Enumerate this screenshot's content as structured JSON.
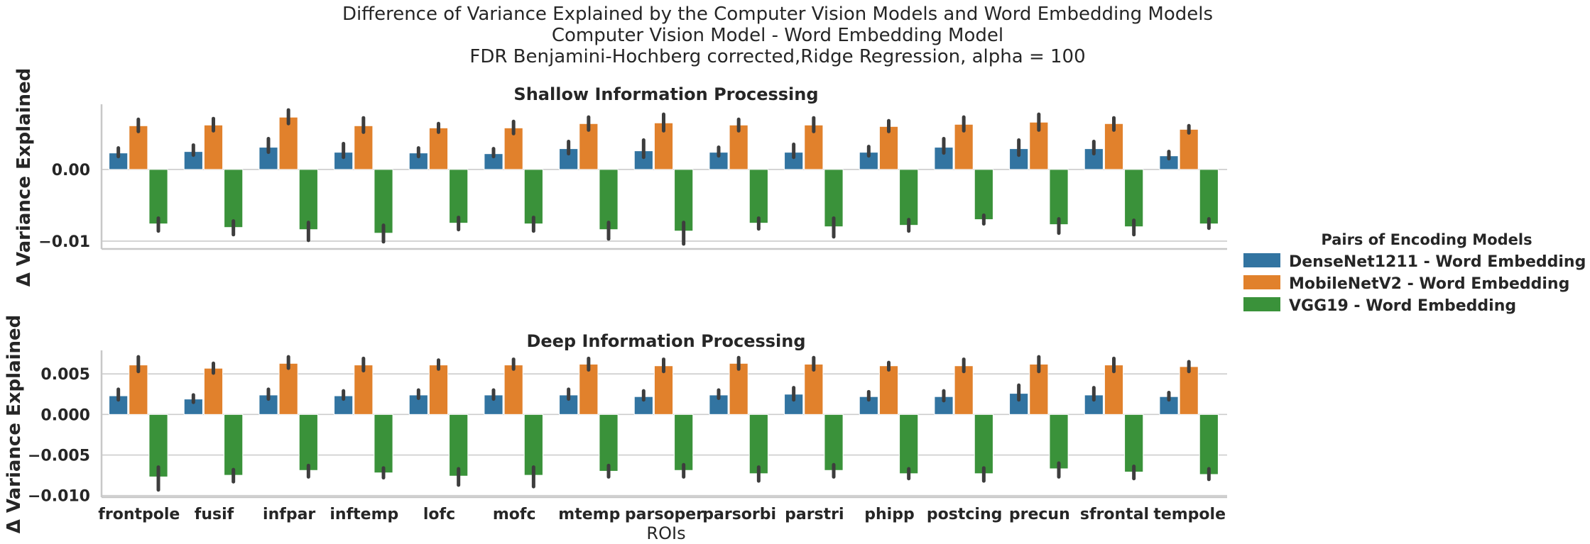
{
  "chart_data": {
    "type": "bar",
    "title": "Difference of Variance Explained by the Computer Vision Models and Word Embedding Models",
    "subtitle": [
      "Computer Vision Model - Word Embedding Model",
      "FDR Benjamini-Hochberg corrected,Ridge Regression, alpha = 100"
    ],
    "xlabel": "ROIs",
    "categories": [
      "frontpole",
      "fusif",
      "infpar",
      "inftemp",
      "lofc",
      "mofc",
      "mtemp",
      "parsoper",
      "parsorbi",
      "parstri",
      "phipp",
      "postcing",
      "precun",
      "sfrontal",
      "tempole"
    ],
    "legend": {
      "title": "Pairs of Encoding Models",
      "placement": "right",
      "series": [
        {
          "name": "DenseNet1211 - Word Embedding",
          "color": "#3274a1"
        },
        {
          "name": "MobileNetV2 - Word Embedding",
          "color": "#e1812c"
        },
        {
          "name": "VGG19 - Word Embedding",
          "color": "#3a923a"
        }
      ]
    },
    "panels": [
      {
        "title": "Shallow Information Processing",
        "ylabel": "Δ Variance Explained",
        "ylim": [
          -0.0111,
          0.0091
        ],
        "yticks": [
          0.0,
          -0.01
        ],
        "ytick_labels": [
          "0.00",
          "−0.01"
        ],
        "grid": true,
        "series": [
          {
            "name": "DenseNet1211 - Word Embedding",
            "values": [
              0.0023,
              0.0025,
              0.0031,
              0.0024,
              0.0023,
              0.0022,
              0.0029,
              0.0026,
              0.0024,
              0.0024,
              0.0024,
              0.0031,
              0.0029,
              0.0029,
              0.0019
            ],
            "err_low": [
              0.0018,
              0.002,
              0.0024,
              0.0017,
              0.0018,
              0.0018,
              0.0022,
              0.0017,
              0.0019,
              0.0017,
              0.0019,
              0.0023,
              0.002,
              0.0022,
              0.0015
            ],
            "err_high": [
              0.003,
              0.0034,
              0.0043,
              0.0036,
              0.003,
              0.0029,
              0.0039,
              0.0041,
              0.0031,
              0.0035,
              0.0032,
              0.0043,
              0.0041,
              0.0039,
              0.0025
            ]
          },
          {
            "name": "MobileNetV2 - Word Embedding",
            "values": [
              0.0061,
              0.0062,
              0.0073,
              0.0061,
              0.0058,
              0.0058,
              0.0064,
              0.0065,
              0.0062,
              0.0062,
              0.006,
              0.0063,
              0.0066,
              0.0064,
              0.0056
            ],
            "err_low": [
              0.0053,
              0.0054,
              0.0064,
              0.0052,
              0.0052,
              0.005,
              0.0055,
              0.0054,
              0.0054,
              0.0053,
              0.0053,
              0.0054,
              0.0055,
              0.0055,
              0.0051
            ],
            "err_high": [
              0.007,
              0.0071,
              0.0083,
              0.0072,
              0.0064,
              0.0067,
              0.0073,
              0.0077,
              0.007,
              0.0072,
              0.0068,
              0.0073,
              0.0077,
              0.0072,
              0.0061
            ]
          },
          {
            "name": "VGG19 - Word Embedding",
            "values": [
              -0.0076,
              -0.0081,
              -0.0084,
              -0.0089,
              -0.0075,
              -0.0076,
              -0.0084,
              -0.0086,
              -0.0075,
              -0.008,
              -0.0078,
              -0.007,
              -0.0077,
              -0.008,
              -0.0076
            ],
            "err_low": [
              -0.0086,
              -0.0091,
              -0.0099,
              -0.0101,
              -0.0084,
              -0.0086,
              -0.0097,
              -0.0104,
              -0.0083,
              -0.0094,
              -0.0086,
              -0.0076,
              -0.0089,
              -0.0091,
              -0.0082
            ],
            "err_high": [
              -0.0068,
              -0.0072,
              -0.0074,
              -0.0078,
              -0.0067,
              -0.0067,
              -0.0074,
              -0.0074,
              -0.0068,
              -0.0068,
              -0.007,
              -0.0064,
              -0.0069,
              -0.0071,
              -0.0069
            ]
          }
        ]
      },
      {
        "title": "Deep Information Processing",
        "ylabel": "Δ Variance Explained",
        "ylim": [
          -0.0102,
          0.0079
        ],
        "yticks": [
          0.005,
          0.0,
          -0.005,
          -0.01
        ],
        "ytick_labels": [
          "0.005",
          "0.000",
          "−0.005",
          "−0.010"
        ],
        "grid": true,
        "series": [
          {
            "name": "DenseNet1211 - Word Embedding",
            "values": [
              0.0023,
              0.0019,
              0.0024,
              0.0023,
              0.0024,
              0.0024,
              0.0024,
              0.0022,
              0.0024,
              0.0025,
              0.0022,
              0.0022,
              0.0026,
              0.0024,
              0.0022
            ],
            "err_low": [
              0.0018,
              0.0015,
              0.0019,
              0.0019,
              0.002,
              0.0019,
              0.0019,
              0.0018,
              0.002,
              0.0018,
              0.0018,
              0.0017,
              0.0018,
              0.0018,
              0.0018
            ],
            "err_high": [
              0.0031,
              0.0024,
              0.0031,
              0.0029,
              0.003,
              0.003,
              0.0031,
              0.0029,
              0.003,
              0.0033,
              0.0028,
              0.0029,
              0.0036,
              0.0033,
              0.0027
            ]
          },
          {
            "name": "MobileNetV2 - Word Embedding",
            "values": [
              0.0061,
              0.0057,
              0.0063,
              0.0061,
              0.0061,
              0.0061,
              0.0062,
              0.006,
              0.0063,
              0.0062,
              0.006,
              0.006,
              0.0062,
              0.0061,
              0.0059
            ],
            "err_low": [
              0.0053,
              0.0051,
              0.0057,
              0.0054,
              0.0056,
              0.0056,
              0.0055,
              0.0053,
              0.0056,
              0.0055,
              0.0055,
              0.0053,
              0.0053,
              0.0053,
              0.0053
            ],
            "err_high": [
              0.0071,
              0.0063,
              0.0071,
              0.0069,
              0.0067,
              0.0068,
              0.0069,
              0.0068,
              0.007,
              0.007,
              0.0064,
              0.0068,
              0.0071,
              0.0069,
              0.0065
            ]
          },
          {
            "name": "VGG19 - Word Embedding",
            "values": [
              -0.0077,
              -0.0075,
              -0.0069,
              -0.0072,
              -0.0076,
              -0.0075,
              -0.007,
              -0.0069,
              -0.0073,
              -0.0069,
              -0.0073,
              -0.0073,
              -0.0067,
              -0.0071,
              -0.0074
            ],
            "err_low": [
              -0.0093,
              -0.0083,
              -0.0077,
              -0.0078,
              -0.0087,
              -0.0089,
              -0.0077,
              -0.0077,
              -0.0082,
              -0.0077,
              -0.0079,
              -0.0082,
              -0.0077,
              -0.0079,
              -0.008
            ],
            "err_high": [
              -0.0065,
              -0.0068,
              -0.0063,
              -0.0066,
              -0.0067,
              -0.0065,
              -0.0063,
              -0.0062,
              -0.0065,
              -0.0062,
              -0.0067,
              -0.0066,
              -0.006,
              -0.0064,
              -0.0067
            ]
          }
        ]
      }
    ]
  }
}
